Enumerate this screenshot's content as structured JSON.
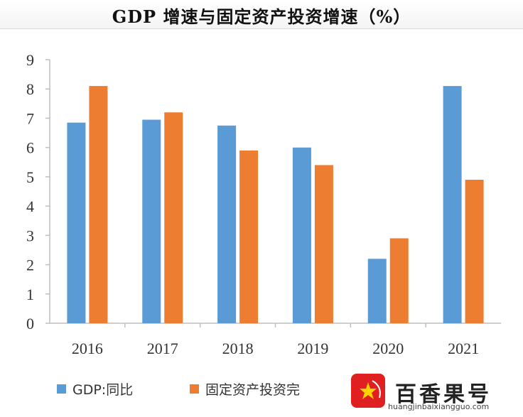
{
  "chart_data": {
    "type": "bar",
    "title": "GDP 增速与固定资产投资增速（%）",
    "categories": [
      "2016",
      "2017",
      "2018",
      "2019",
      "2020",
      "2021"
    ],
    "series": [
      {
        "name": "GDP:同比",
        "values": [
          6.85,
          6.95,
          6.75,
          6.0,
          2.2,
          8.1
        ],
        "color": "#5b9bd5"
      },
      {
        "name": "固定资产投资完",
        "values": [
          8.1,
          7.2,
          5.9,
          5.4,
          2.9,
          4.9
        ],
        "color": "#ed7d31"
      }
    ],
    "ylim": [
      0,
      9
    ],
    "yticks": [
      "0",
      "1",
      "2",
      "3",
      "4",
      "5",
      "6",
      "7",
      "8",
      "9"
    ],
    "grid": false,
    "legend": "bottom",
    "xlabel": "",
    "ylabel": ""
  },
  "watermark": {
    "brand": "百香果号",
    "url": "huangjinbaixiangguo.com"
  }
}
